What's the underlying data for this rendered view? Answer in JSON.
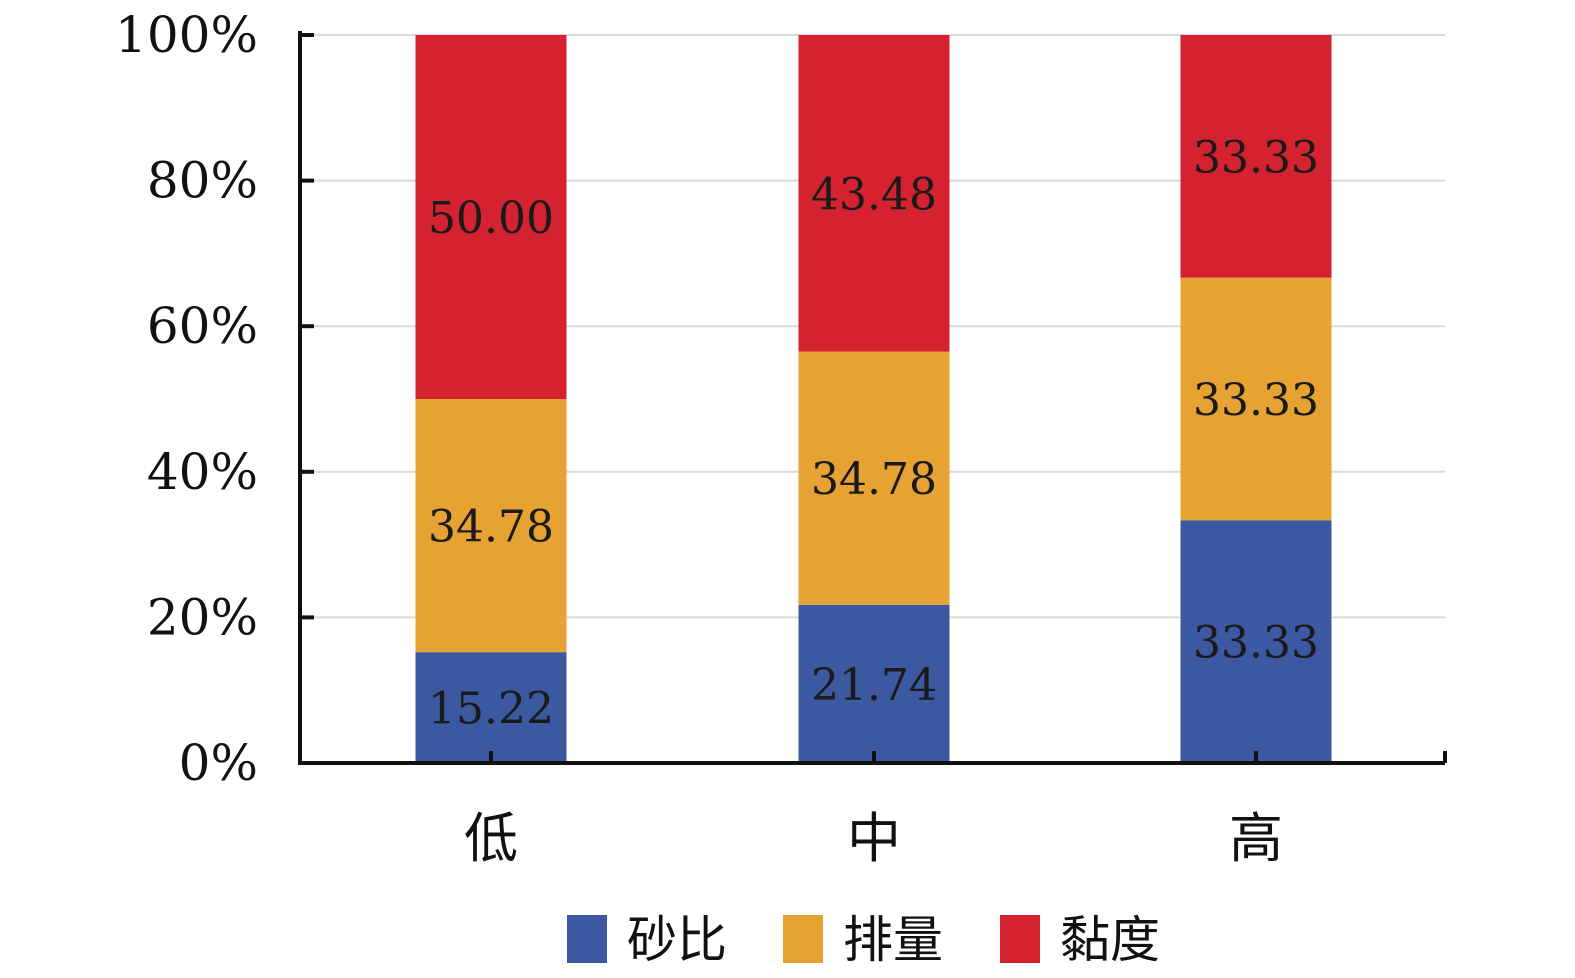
{
  "chart_data": {
    "type": "bar",
    "stacked": true,
    "percent_stacked": true,
    "categories": [
      "低",
      "中",
      "高"
    ],
    "series": [
      {
        "name": "砂比",
        "color": "#3b58a0",
        "values": [
          15.22,
          21.74,
          33.33
        ]
      },
      {
        "name": "排量",
        "color": "#e6a233",
        "values": [
          34.78,
          34.78,
          33.33
        ]
      },
      {
        "name": "黏度",
        "color": "#d42230",
        "values": [
          50.0,
          43.48,
          33.33
        ]
      }
    ],
    "labels": [
      [
        "15.22",
        "21.74",
        "33.33"
      ],
      [
        "34.78",
        "34.78",
        "33.33"
      ],
      [
        "50.00",
        "43.48",
        "33.33"
      ]
    ],
    "title": "",
    "xlabel": "",
    "ylabel": "",
    "ylim": [
      0,
      100
    ],
    "yticks": [
      0,
      20,
      40,
      60,
      80,
      100
    ],
    "ytick_labels": [
      "0%",
      "20%",
      "40%",
      "60%",
      "80%",
      "100%"
    ],
    "grid": true,
    "legend": "bottom"
  }
}
